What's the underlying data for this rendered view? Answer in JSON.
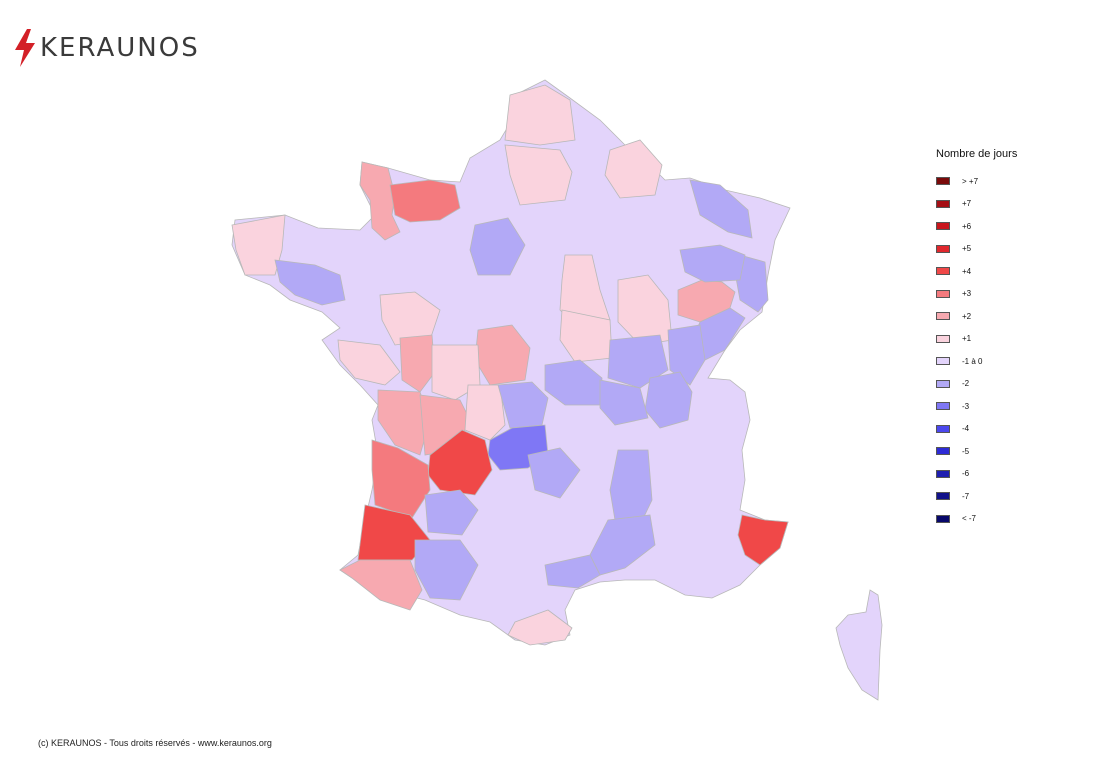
{
  "brand": {
    "name": "KERAUNOS",
    "logo_icon": "lightning-bolt-icon",
    "accent": "#d32027"
  },
  "legend": {
    "title": "Nombre de jours",
    "items": [
      {
        "label": "> +7",
        "color": "#7a0a0a"
      },
      {
        "label": "+7",
        "color": "#a50f15"
      },
      {
        "label": "+6",
        "color": "#c8161d"
      },
      {
        "label": "+5",
        "color": "#e0282e"
      },
      {
        "label": "+4",
        "color": "#f04848"
      },
      {
        "label": "+3",
        "color": "#f47a7e"
      },
      {
        "label": "+2",
        "color": "#f7a9b0"
      },
      {
        "label": "+1",
        "color": "#fad3de"
      },
      {
        "label": "-1 à 0",
        "color": "#e3d4fb"
      },
      {
        "label": "-2",
        "color": "#b2a9f6"
      },
      {
        "label": "-3",
        "color": "#7f77f5"
      },
      {
        "label": "-4",
        "color": "#4c48ee"
      },
      {
        "label": "-5",
        "color": "#2e2bd6"
      },
      {
        "label": "-6",
        "color": "#1f1fb0"
      },
      {
        "label": "-7",
        "color": "#12128a"
      },
      {
        "label": "< -7",
        "color": "#07076a"
      }
    ]
  },
  "copyright": "(c) KERAUNOS - Tous droits réservés - www.keraunos.org"
}
